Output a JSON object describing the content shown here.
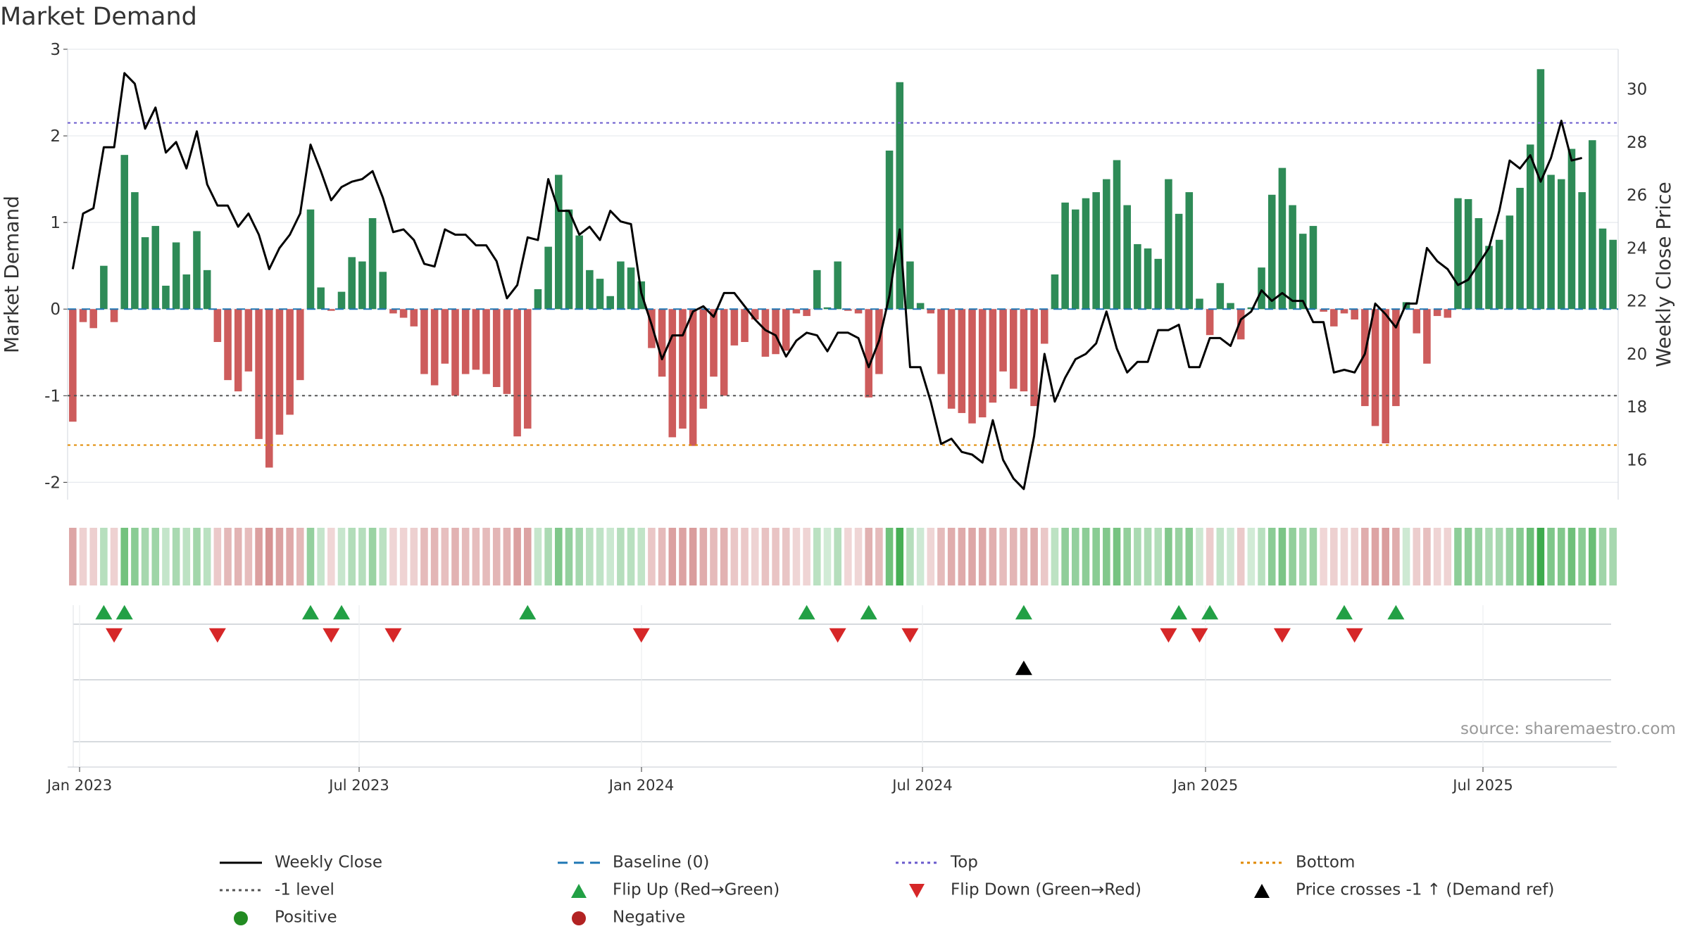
{
  "chart_data": {
    "type": "bar+line",
    "title": "Market Demand",
    "ylabel_left": "Market Demand",
    "ylabel_right": "Weekly Close Price",
    "ylim_left": [
      -2.2,
      3
    ],
    "yticks_left": [
      "3",
      "2",
      "1",
      "0",
      "-1",
      "-2"
    ],
    "ylim_right": [
      14.5,
      31.5
    ],
    "yticks_right": [
      "30",
      "28",
      "26",
      "24",
      "22",
      "20",
      "18",
      "16"
    ],
    "xticks": [
      "Jan 2023",
      "Jul 2023",
      "Jan 2024",
      "Jul 2024",
      "Jan 2025",
      "Jul 2025"
    ],
    "reference_lines": {
      "top": 2.15,
      "minus_one": -1.0,
      "bottom": -1.57,
      "baseline": 0
    },
    "demand": [
      -1.3,
      -0.15,
      -0.22,
      0.5,
      -0.15,
      1.78,
      1.35,
      0.83,
      0.96,
      0.27,
      0.77,
      0.4,
      0.9,
      0.45,
      -0.38,
      -0.82,
      -0.95,
      -0.72,
      -1.5,
      -1.83,
      -1.45,
      -1.22,
      -0.82,
      1.15,
      0.25,
      -0.02,
      0.2,
      0.6,
      0.55,
      1.05,
      0.43,
      -0.05,
      -0.1,
      -0.2,
      -0.75,
      -0.88,
      -0.63,
      -1.0,
      -0.75,
      -0.7,
      -0.75,
      -0.9,
      -0.98,
      -1.47,
      -1.38,
      0.23,
      0.72,
      1.55,
      1.15,
      0.85,
      0.45,
      0.35,
      0.15,
      0.55,
      0.48,
      0.32,
      -0.45,
      -0.78,
      -1.48,
      -1.38,
      -1.58,
      -1.15,
      -0.78,
      -1.0,
      -0.42,
      -0.38,
      -0.12,
      -0.55,
      -0.52,
      -0.48,
      -0.05,
      -0.08,
      0.45,
      0.02,
      0.55,
      -0.02,
      -0.05,
      -1.02,
      -0.75,
      1.83,
      2.62,
      0.55,
      0.07,
      -0.05,
      -0.75,
      -1.15,
      -1.2,
      -1.32,
      -1.25,
      -1.08,
      -0.72,
      -0.92,
      -0.95,
      -1.12,
      -0.4,
      0.4,
      1.23,
      1.15,
      1.28,
      1.35,
      1.5,
      1.72,
      1.2,
      0.75,
      0.7,
      0.58,
      1.5,
      1.1,
      1.35,
      0.12,
      -0.3,
      0.3,
      0.07,
      -0.35,
      0.02,
      0.48,
      1.32,
      1.63,
      1.2,
      0.87,
      0.96,
      -0.03,
      -0.2,
      -0.05,
      -0.12,
      -1.12,
      -1.35,
      -1.55,
      -1.12,
      0.08,
      -0.28,
      -0.63,
      -0.08,
      -0.1,
      1.28,
      1.27,
      1.05,
      0.73,
      0.8,
      1.08,
      1.4,
      1.9,
      2.77,
      1.55,
      1.5,
      1.85,
      1.35,
      1.95,
      0.93,
      0.8
    ],
    "close": [
      23.2,
      25.3,
      25.5,
      27.8,
      27.8,
      30.6,
      30.2,
      28.5,
      29.3,
      27.6,
      28.0,
      27.0,
      28.4,
      26.4,
      25.6,
      25.6,
      24.8,
      25.3,
      24.5,
      23.2,
      24.0,
      24.5,
      25.3,
      27.9,
      26.9,
      25.8,
      26.3,
      26.5,
      26.6,
      26.9,
      25.9,
      24.6,
      24.7,
      24.3,
      23.4,
      23.3,
      24.7,
      24.5,
      24.5,
      24.1,
      24.1,
      23.5,
      22.1,
      22.6,
      24.4,
      24.3,
      26.6,
      25.4,
      25.4,
      24.5,
      24.8,
      24.3,
      25.4,
      25.0,
      24.9,
      22.3,
      21.1,
      19.8,
      20.7,
      20.7,
      21.6,
      21.8,
      21.4,
      22.3,
      22.3,
      21.8,
      21.3,
      20.9,
      20.7,
      19.9,
      20.5,
      20.8,
      20.7,
      20.1,
      20.8,
      20.8,
      20.6,
      19.5,
      20.5,
      22.2,
      24.7,
      19.5,
      19.5,
      18.2,
      16.6,
      16.8,
      16.3,
      16.2,
      15.9,
      17.5,
      16.0,
      15.3,
      14.9,
      16.9,
      20.0,
      18.2,
      19.1,
      19.8,
      20.0,
      20.4,
      21.6,
      20.2,
      19.3,
      19.7,
      19.7,
      20.9,
      20.9,
      21.1,
      19.5,
      19.5,
      20.6,
      20.6,
      20.3,
      21.3,
      21.6,
      22.4,
      22.0,
      22.3,
      22.0,
      22.0,
      21.2,
      21.2,
      19.3,
      19.4,
      19.3,
      20.0,
      21.9,
      21.5,
      21.0,
      21.9,
      21.9,
      24.0,
      23.5,
      23.2,
      22.6,
      22.8,
      23.4,
      24.0,
      25.4,
      27.3,
      27.0,
      27.5,
      26.5,
      27.4,
      28.8,
      27.3,
      27.4
    ],
    "flip_up_weeks": [
      3,
      5,
      23,
      26,
      44,
      71,
      77,
      92,
      107,
      110,
      123,
      128
    ],
    "flip_down_weeks": [
      4,
      14,
      25,
      31,
      55,
      74,
      81,
      106,
      109,
      117,
      124
    ],
    "price_cross_weeks": [
      92
    ],
    "source": "source: sharemaestro.com",
    "legend": [
      {
        "label": "Weekly Close",
        "symbol": "line-solid",
        "color": "#000000"
      },
      {
        "label": "Baseline (0)",
        "symbol": "line-dash",
        "color": "#1f77b4"
      },
      {
        "label": "Top",
        "symbol": "line-dot",
        "color": "#6a5acd"
      },
      {
        "label": "Bottom",
        "symbol": "line-dot",
        "color": "#e08a00"
      },
      {
        "label": "-1 level",
        "symbol": "line-dot",
        "color": "#555555"
      },
      {
        "label": "Flip Up (Red→Green)",
        "symbol": "triangle-up",
        "color": "#22a045"
      },
      {
        "label": "Flip Down (Green→Red)",
        "symbol": "triangle-down",
        "color": "#d62728"
      },
      {
        "label": "Price crosses -1 ↑ (Demand ref)",
        "symbol": "triangle-up",
        "color": "#000000"
      },
      {
        "label": "Positive",
        "symbol": "circle",
        "color": "#228b22"
      },
      {
        "label": "Negative",
        "symbol": "circle",
        "color": "#b22222"
      }
    ],
    "colors": {
      "positive_bar": "#2e8b57",
      "negative_bar": "#cd5c5c",
      "grid": "#e6e9ee"
    }
  }
}
